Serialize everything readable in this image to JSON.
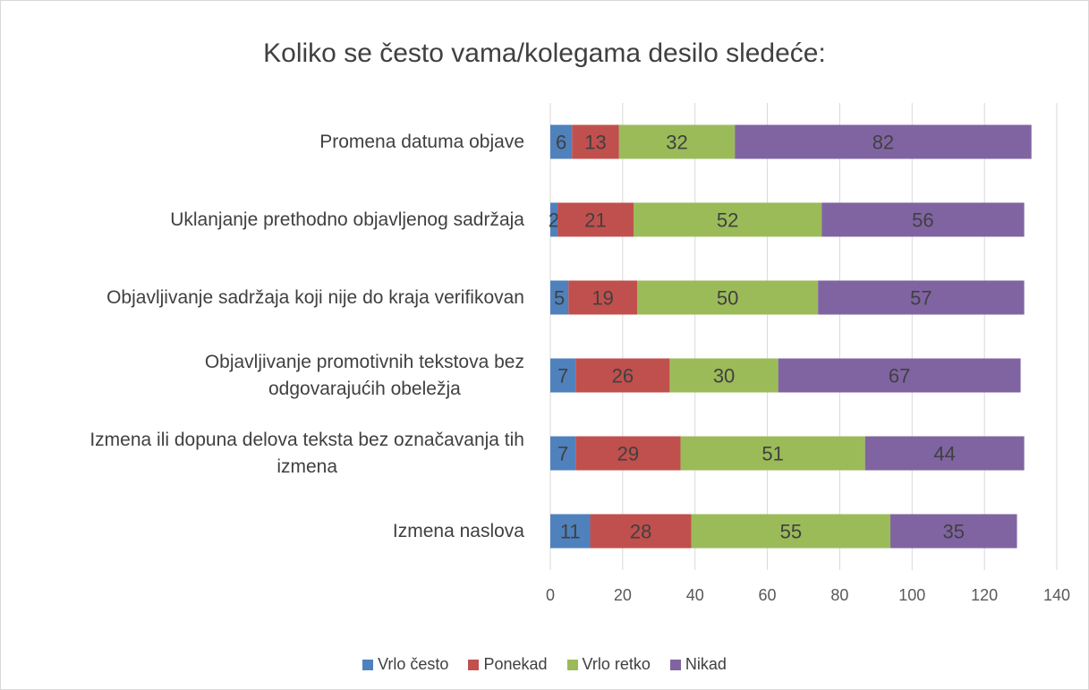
{
  "chart_data": {
    "type": "stacked_barh",
    "title": "Koliko se često vama/kolegama desilo sledeće:",
    "categories": [
      "Promena datuma objave",
      "Uklanjanje prethodno objavljenog sadržaja",
      "Objavljivanje sadržaja koji nije do kraja verifikovan",
      "Objavljivanje promotivnih  tekstova bez\nodgovarajućih obeležja",
      "Izmena ili dopuna delova teksta bez označavanja tih\nizmena",
      "Izmena naslova"
    ],
    "series": [
      {
        "name": "Vrlo često",
        "color": "#4f81bd",
        "values": [
          6,
          2,
          5,
          7,
          7,
          11
        ]
      },
      {
        "name": "Ponekad",
        "color": "#c0504d",
        "values": [
          13,
          21,
          19,
          26,
          29,
          28
        ]
      },
      {
        "name": "Vrlo retko",
        "color": "#9bbb59",
        "values": [
          32,
          52,
          50,
          30,
          51,
          55
        ]
      },
      {
        "name": "Nikad",
        "color": "#8064a2",
        "values": [
          82,
          56,
          57,
          67,
          44,
          35
        ]
      }
    ],
    "xlim": [
      0,
      140
    ],
    "xticks": [
      0,
      20,
      40,
      60,
      80,
      100,
      120,
      140
    ],
    "grid": true,
    "legend": "bottom"
  }
}
